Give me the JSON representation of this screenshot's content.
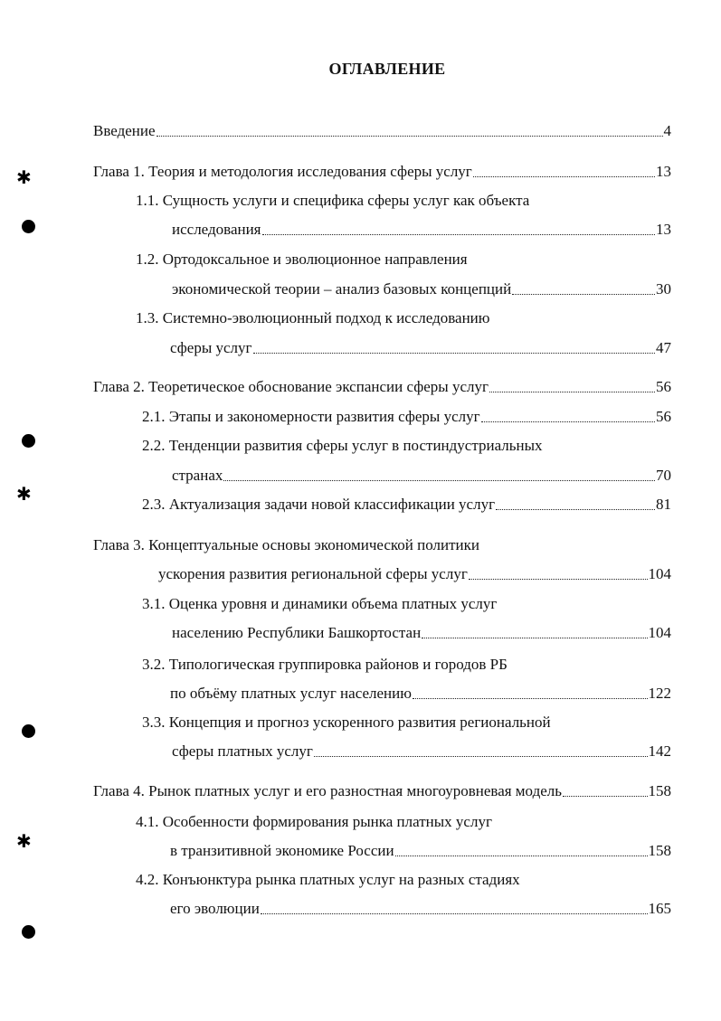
{
  "title": "ОГЛАВЛЕНИЕ",
  "entries": [
    {
      "lines": [
        "Введение"
      ],
      "page": "4"
    },
    {
      "lines": [
        "Глава 1. Теория и методология исследования сферы услуг"
      ],
      "page": "13"
    },
    {
      "lines": [
        "1.1. Сущность услуги и специфика сферы услуг как объекта",
        "исследования"
      ],
      "page": "13"
    },
    {
      "lines": [
        "1.2. Ортодоксальное и эволюционное направления",
        "экономической теории – анализ базовых концепций"
      ],
      "page": "30"
    },
    {
      "lines": [
        "1.3. Системно-эволюционный подход к исследованию",
        "сферы услуг"
      ],
      "page": "47"
    },
    {
      "lines": [
        "Глава 2. Теоретическое обоснование экспансии сферы услуг"
      ],
      "page": "56"
    },
    {
      "lines": [
        "2.1. Этапы и закономерности развития сферы услуг"
      ],
      "page": "56"
    },
    {
      "lines": [
        "2.2. Тенденции развития сферы услуг в постиндустриальных",
        "странах"
      ],
      "page": "70"
    },
    {
      "lines": [
        "2.3. Актуализация задачи новой классификации услуг"
      ],
      "page": "81"
    },
    {
      "lines": [
        "Глава 3. Концептуальные основы экономической политики",
        "ускорения развития региональной сферы услуг"
      ],
      "page": "104"
    },
    {
      "lines": [
        "3.1. Оценка уровня и динамики объема платных услуг",
        "населению Республики Башкортостан"
      ],
      "page": "104"
    },
    {
      "lines": [
        "3.2. Типологическая группировка районов и городов РБ",
        "по объёму платных услуг населению"
      ],
      "page": "122"
    },
    {
      "lines": [
        "3.3. Концепция и прогноз ускоренного развития региональной",
        "сферы платных услуг"
      ],
      "page": "142"
    },
    {
      "lines": [
        "Глава 4. Рынок платных услуг и его разностная многоуровневая модель"
      ],
      "page": "158"
    },
    {
      "lines": [
        "4.1. Особенности формирования рынка платных услуг",
        "в транзитивной экономике России"
      ],
      "page": "158"
    },
    {
      "lines": [
        "4.2. Конъюнктура рынка платных услуг на разных стадиях",
        "его эволюции"
      ],
      "page": "165"
    }
  ]
}
